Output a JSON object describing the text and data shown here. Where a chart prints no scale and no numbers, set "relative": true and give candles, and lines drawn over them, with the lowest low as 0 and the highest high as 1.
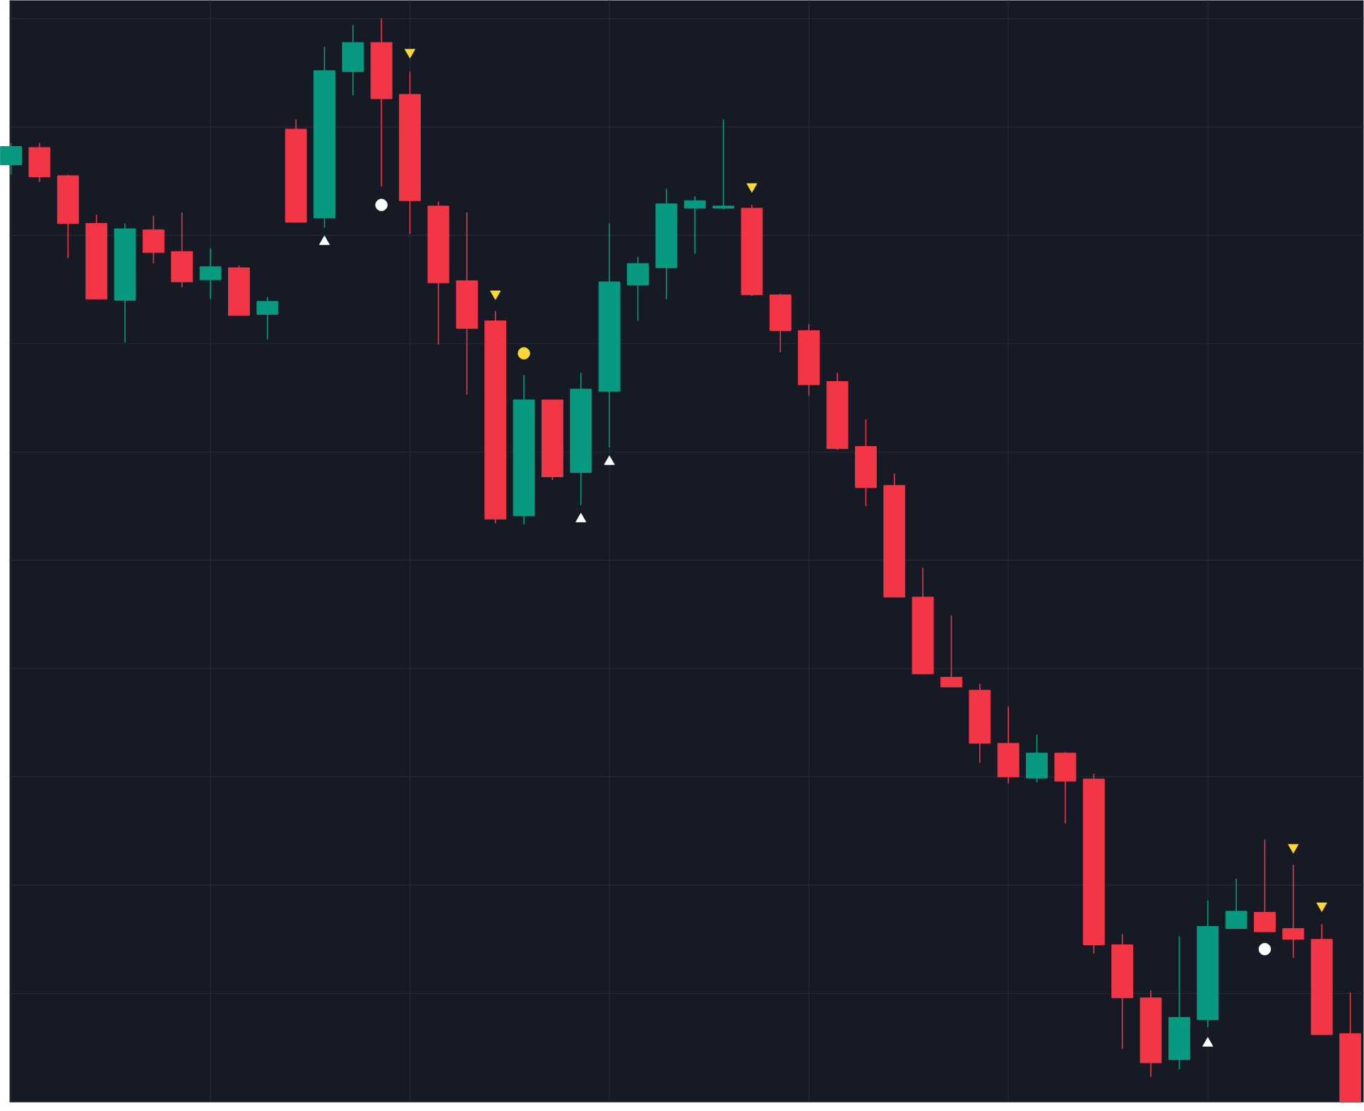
{
  "chart_data": {
    "type": "candlestick",
    "relative": true,
    "grid": true,
    "tick_labels": false,
    "categories": [
      null,
      null,
      null,
      null,
      null,
      null,
      null,
      null,
      null,
      null,
      null,
      null,
      null,
      null,
      null,
      null,
      null,
      null,
      null,
      null,
      null,
      null,
      null,
      null,
      null,
      null,
      null,
      null,
      null,
      null,
      null,
      null,
      null,
      null,
      null,
      null,
      null,
      null,
      null,
      null,
      null,
      null,
      null,
      null,
      null,
      null,
      null,
      null
    ],
    "ohlc": [
      [
        0.865,
        0.885,
        0.856,
        0.882
      ],
      [
        0.881,
        0.885,
        0.849,
        0.854
      ],
      [
        0.855,
        0.856,
        0.779,
        0.811
      ],
      [
        0.811,
        0.819,
        0.741,
        0.741
      ],
      [
        0.74,
        0.811,
        0.701,
        0.806
      ],
      [
        0.805,
        0.818,
        0.774,
        0.784
      ],
      [
        0.785,
        0.821,
        0.752,
        0.757
      ],
      [
        0.759,
        0.788,
        0.741,
        0.771
      ],
      [
        0.77,
        0.772,
        0.726,
        0.726
      ],
      [
        0.727,
        0.743,
        0.704,
        0.739
      ],
      [
        0.898,
        0.907,
        0.812,
        0.812
      ],
      [
        0.816,
        0.974,
        0.807,
        0.952
      ],
      [
        0.951,
        0.994,
        0.929,
        0.978
      ],
      [
        0.978,
        1.0,
        0.845,
        0.926
      ],
      [
        0.93,
        0.951,
        0.801,
        0.832
      ],
      [
        0.827,
        0.831,
        0.699,
        0.756
      ],
      [
        0.758,
        0.821,
        0.653,
        0.714
      ],
      [
        0.721,
        0.73,
        0.534,
        0.538
      ],
      [
        0.541,
        0.671,
        0.533,
        0.648
      ],
      [
        0.648,
        0.648,
        0.574,
        0.577
      ],
      [
        0.581,
        0.673,
        0.551,
        0.658
      ],
      [
        0.656,
        0.811,
        0.604,
        0.757
      ],
      [
        0.754,
        0.78,
        0.721,
        0.774
      ],
      [
        0.77,
        0.843,
        0.741,
        0.829
      ],
      [
        0.825,
        0.836,
        0.783,
        0.832
      ],
      [
        0.825,
        0.907,
        0.824,
        0.827
      ],
      [
        0.825,
        0.828,
        0.744,
        0.745
      ],
      [
        0.745,
        0.746,
        0.692,
        0.712
      ],
      [
        0.712,
        0.718,
        0.652,
        0.662
      ],
      [
        0.665,
        0.673,
        0.602,
        0.603
      ],
      [
        0.605,
        0.63,
        0.55,
        0.567
      ],
      [
        0.569,
        0.58,
        0.466,
        0.466
      ],
      [
        0.466,
        0.493,
        0.395,
        0.395
      ],
      [
        0.392,
        0.449,
        0.383,
        0.383
      ],
      [
        0.38,
        0.386,
        0.313,
        0.331
      ],
      [
        0.331,
        0.365,
        0.294,
        0.3
      ],
      [
        0.299,
        0.339,
        0.295,
        0.322
      ],
      [
        0.322,
        0.323,
        0.257,
        0.296
      ],
      [
        0.298,
        0.303,
        0.137,
        0.145
      ],
      [
        0.145,
        0.155,
        0.049,
        0.096
      ],
      [
        0.096,
        0.103,
        0.023,
        0.036
      ],
      [
        0.039,
        0.153,
        0.03,
        0.078
      ],
      [
        0.076,
        0.186,
        0.069,
        0.162
      ],
      [
        0.16,
        0.206,
        0.16,
        0.176
      ],
      [
        0.175,
        0.242,
        0.157,
        0.157
      ],
      [
        0.16,
        0.219,
        0.133,
        0.15
      ],
      [
        0.15,
        0.164,
        0.062,
        0.062
      ],
      [
        0.063,
        0.101,
        0.0,
        0.0
      ]
    ],
    "colors": [
      "#089981",
      "#f23645",
      "#f23645",
      "#f23645",
      "#089981",
      "#f23645",
      "#f23645",
      "#089981",
      "#f23645",
      "#089981",
      "#f23645",
      "#089981",
      "#089981",
      "#f23645",
      "#f23645",
      "#f23645",
      "#f23645",
      "#f23645",
      "#089981",
      "#f23645",
      "#089981",
      "#089981",
      "#089981",
      "#089981",
      "#089981",
      "#089981",
      "#f23645",
      "#f23645",
      "#f23645",
      "#f23645",
      "#f23645",
      "#f23645",
      "#f23645",
      "#f23645",
      "#f23645",
      "#f23645",
      "#089981",
      "#f23645",
      "#f23645",
      "#f23645",
      "#f23645",
      "#089981",
      "#089981",
      "#089981",
      "#f23645",
      "#f23645",
      "#f23645",
      "#f23645"
    ],
    "series": [
      {
        "type": "scatter",
        "marker": "triangle",
        "color": "#ffffff",
        "values": [
          null,
          null,
          null,
          null,
          null,
          null,
          null,
          null,
          null,
          null,
          null,
          0.794,
          null,
          null,
          null,
          null,
          null,
          null,
          null,
          null,
          0.538,
          0.591,
          null,
          null,
          null,
          null,
          null,
          null,
          null,
          null,
          null,
          null,
          null,
          null,
          null,
          null,
          null,
          null,
          null,
          null,
          null,
          null,
          0.054,
          null,
          null,
          null,
          null,
          null
        ]
      },
      {
        "type": "scatter",
        "marker": "triangle-down",
        "color": "#fdd835",
        "values": [
          null,
          null,
          null,
          null,
          null,
          null,
          null,
          null,
          null,
          null,
          null,
          null,
          null,
          null,
          0.969,
          null,
          null,
          0.746,
          null,
          null,
          null,
          null,
          null,
          null,
          null,
          null,
          0.845,
          null,
          null,
          null,
          null,
          null,
          null,
          null,
          null,
          null,
          null,
          null,
          null,
          null,
          null,
          null,
          null,
          null,
          null,
          0.235,
          0.181,
          null
        ]
      },
      {
        "type": "scatter",
        "marker": "circle",
        "color": "#ffffff",
        "values": [
          null,
          null,
          null,
          null,
          null,
          null,
          null,
          null,
          null,
          null,
          null,
          null,
          null,
          0.828,
          null,
          null,
          null,
          null,
          null,
          null,
          null,
          null,
          null,
          null,
          null,
          null,
          null,
          null,
          null,
          null,
          null,
          null,
          null,
          null,
          null,
          null,
          null,
          null,
          null,
          null,
          null,
          null,
          null,
          null,
          0.141,
          null,
          null,
          null
        ]
      },
      {
        "type": "scatter",
        "marker": "circle",
        "color": "#fdd835",
        "values": [
          null,
          null,
          null,
          null,
          null,
          null,
          null,
          null,
          null,
          null,
          null,
          null,
          null,
          null,
          null,
          null,
          null,
          null,
          0.691,
          null,
          null,
          null,
          null,
          null,
          null,
          null,
          null,
          null,
          null,
          null,
          null,
          null,
          null,
          null,
          null,
          null,
          null,
          null,
          null,
          null,
          null,
          null,
          null,
          null,
          null,
          null,
          null,
          null
        ]
      }
    ]
  }
}
